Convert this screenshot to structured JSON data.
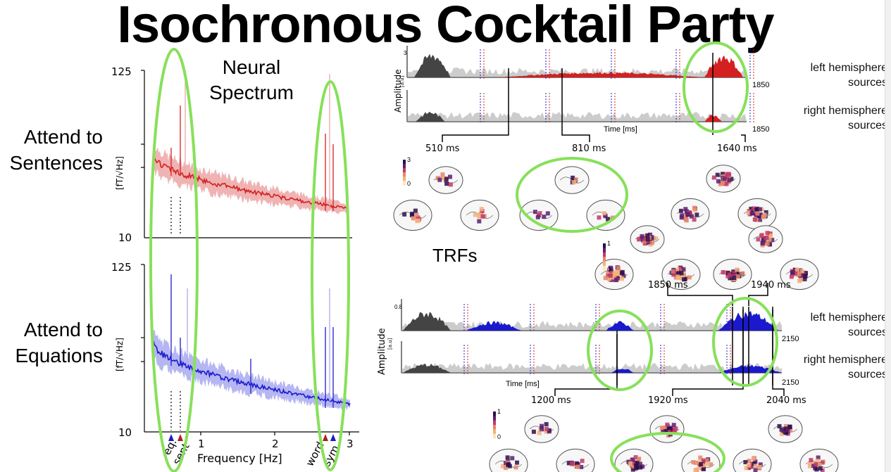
{
  "title": "Isochronous Cocktail Party",
  "spectrum": {
    "heading_line1": "Neural",
    "heading_line2": "Spectrum",
    "row1_line1": "Attend to",
    "row1_line2": "Sentences",
    "row2_line1": "Attend to",
    "row2_line2": "Equations",
    "ylabel": "[fT/√Hz]",
    "ytick_top": "125",
    "ytick_bottom": "10",
    "xticks": [
      "1",
      "2",
      "3"
    ],
    "xlabel": "Frequency [Hz]",
    "rotated_labels": [
      "eq.",
      "sent",
      "word",
      "sym."
    ]
  },
  "trf": {
    "label": "TRFs",
    "amplitude_label": "Amplitude",
    "units_label": "[a.u]",
    "time_label": "Time [ms]",
    "top_ytick": "3",
    "bottom_ytick": "0.8",
    "zero": "0",
    "top_end": "1850",
    "bottom_end": "2150",
    "left_hemisphere_line1": "left hemisphere",
    "left_hemisphere_line2": "sources",
    "right_hemisphere_line1": "right hemisphere",
    "right_hemisphere_line2": "sources",
    "top_latencies": [
      "510 ms",
      "810 ms",
      "1640 ms"
    ],
    "mid_latencies": [
      "1850 ms",
      "1940 ms"
    ],
    "bottom_latencies": [
      "1200 ms",
      "1920 ms",
      "2040 ms"
    ],
    "colorbar_top_max": "3",
    "colorbar_other_max": "1",
    "colorbar_min": "0"
  },
  "colors": {
    "sentence_red": "#d42020",
    "sentence_band": "#eca6a6",
    "equation_blue": "#1a1acc",
    "equation_band": "#a9a9f0",
    "highlight_green": "#88e05a",
    "gray_trace": "#9a9a9a",
    "dark_trace": "#444444"
  }
}
